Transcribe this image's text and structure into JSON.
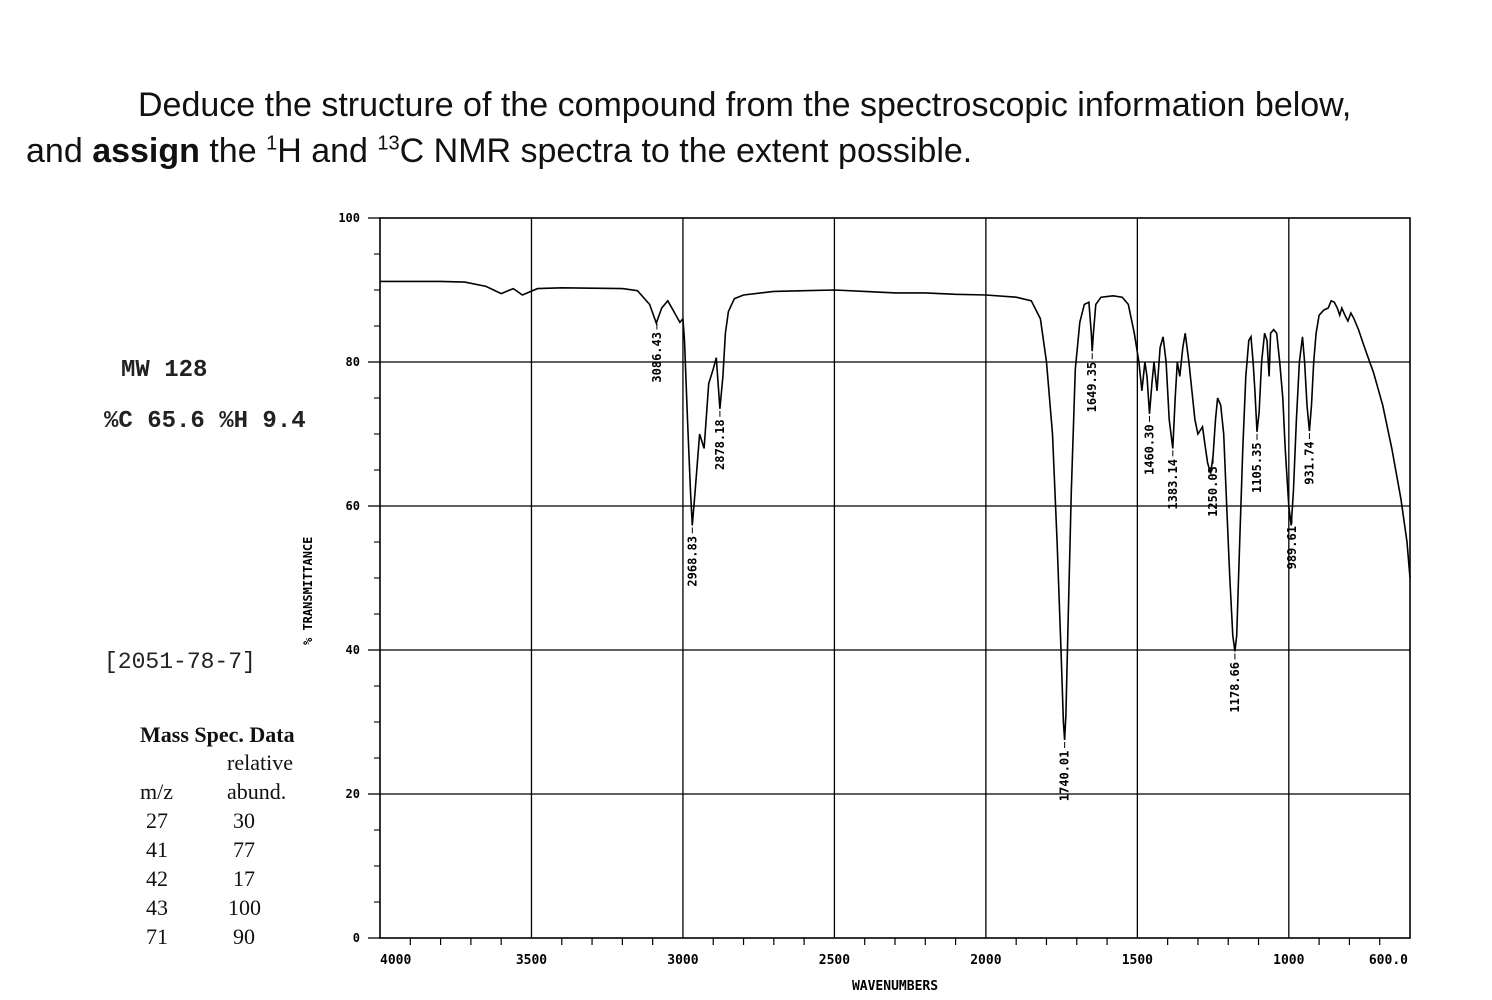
{
  "prompt": {
    "line1": "Deduce the structure of the compound from the spectroscopic information below,",
    "line2_before": "and ",
    "line2_bold": "assign",
    "line2_mid": " the ",
    "sup1": "1",
    "line2_h": "H and ",
    "sup13": "13",
    "line2_after": "C NMR spectra to the extent possible."
  },
  "compound": {
    "mw": "MW 128",
    "composition": "%C 65.6 %H 9.4",
    "cas": "[2051-78-7]"
  },
  "mass_spec": {
    "title": "Mass Spec. Data",
    "header_relative": "relative",
    "header_mz": "m/z",
    "header_abund": "abund.",
    "rows": [
      {
        "mz": "27",
        "abund": "30"
      },
      {
        "mz": "41",
        "abund": "77"
      },
      {
        "mz": "42",
        "abund": "17"
      },
      {
        "mz": "43",
        "abund": "100"
      },
      {
        "mz": "71",
        "abund": "90"
      }
    ]
  },
  "chart_data": {
    "type": "line",
    "xlabel": "WAVENUMBERS",
    "ylabel": "% TRANSMITTANCE",
    "xlim": [
      4000,
      600
    ],
    "ylim": [
      0,
      100
    ],
    "x_ticks": [
      "4000",
      "3500",
      "3000",
      "2500",
      "2000",
      "1500",
      "1000",
      "600.0"
    ],
    "y_ticks": [
      "0",
      "20",
      "40",
      "60",
      "80",
      "100"
    ],
    "grid": true,
    "color": "#000000",
    "series": [
      {
        "points": [
          [
            4000,
            91.2
          ],
          [
            3800,
            91.2
          ],
          [
            3720,
            91.1
          ],
          [
            3650,
            90.5
          ],
          [
            3600,
            89.5
          ],
          [
            3560,
            90.2
          ],
          [
            3530,
            89.3
          ],
          [
            3480,
            90.2
          ],
          [
            3400,
            90.3
          ],
          [
            3200,
            90.2
          ],
          [
            3150,
            89.9
          ],
          [
            3110,
            88
          ],
          [
            3088,
            85.4
          ],
          [
            3070,
            87.5
          ],
          [
            3050,
            88.5
          ],
          [
            3030,
            87
          ],
          [
            3010,
            85.5
          ],
          [
            3000,
            86
          ],
          [
            2995,
            83
          ],
          [
            2985,
            72
          ],
          [
            2975,
            62
          ],
          [
            2969,
            57.3
          ],
          [
            2960,
            62
          ],
          [
            2945,
            70
          ],
          [
            2930,
            68
          ],
          [
            2915,
            77
          ],
          [
            2900,
            79
          ],
          [
            2890,
            80.6
          ],
          [
            2878,
            73.5
          ],
          [
            2868,
            78
          ],
          [
            2860,
            84
          ],
          [
            2850,
            87
          ],
          [
            2830,
            88.8
          ],
          [
            2800,
            89.3
          ],
          [
            2700,
            89.8
          ],
          [
            2600,
            89.9
          ],
          [
            2500,
            90.0
          ],
          [
            2400,
            89.8
          ],
          [
            2300,
            89.6
          ],
          [
            2200,
            89.6
          ],
          [
            2100,
            89.4
          ],
          [
            2000,
            89.3
          ],
          [
            1900,
            89.0
          ],
          [
            1850,
            88.5
          ],
          [
            1820,
            86
          ],
          [
            1800,
            80
          ],
          [
            1780,
            70
          ],
          [
            1765,
            55
          ],
          [
            1752,
            40
          ],
          [
            1744,
            30
          ],
          [
            1740,
            27.5
          ],
          [
            1736,
            31
          ],
          [
            1728,
            45
          ],
          [
            1718,
            62
          ],
          [
            1705,
            79
          ],
          [
            1690,
            85.5
          ],
          [
            1675,
            88
          ],
          [
            1660,
            88.3
          ],
          [
            1652,
            84
          ],
          [
            1649,
            81.5
          ],
          [
            1645,
            84
          ],
          [
            1637,
            88
          ],
          [
            1620,
            89
          ],
          [
            1580,
            89.2
          ],
          [
            1550,
            89
          ],
          [
            1530,
            88
          ],
          [
            1510,
            84
          ],
          [
            1495,
            80
          ],
          [
            1485,
            76
          ],
          [
            1475,
            80
          ],
          [
            1468,
            78
          ],
          [
            1460,
            72.8
          ],
          [
            1452,
            77
          ],
          [
            1445,
            80
          ],
          [
            1435,
            76
          ],
          [
            1425,
            82
          ],
          [
            1415,
            83.5
          ],
          [
            1405,
            80
          ],
          [
            1395,
            72
          ],
          [
            1383,
            68
          ],
          [
            1375,
            75
          ],
          [
            1368,
            80
          ],
          [
            1360,
            78
          ],
          [
            1350,
            82
          ],
          [
            1342,
            84
          ],
          [
            1330,
            80
          ],
          [
            1320,
            76
          ],
          [
            1310,
            72
          ],
          [
            1300,
            70
          ],
          [
            1285,
            71
          ],
          [
            1275,
            68
          ],
          [
            1268,
            66
          ],
          [
            1258,
            64.5
          ],
          [
            1250,
            67
          ],
          [
            1242,
            72
          ],
          [
            1235,
            75
          ],
          [
            1225,
            74
          ],
          [
            1215,
            70
          ],
          [
            1205,
            60
          ],
          [
            1195,
            50
          ],
          [
            1185,
            42
          ],
          [
            1178,
            39.8
          ],
          [
            1172,
            42
          ],
          [
            1162,
            55
          ],
          [
            1152,
            68
          ],
          [
            1142,
            78
          ],
          [
            1132,
            83
          ],
          [
            1125,
            83.5
          ],
          [
            1118,
            80
          ],
          [
            1112,
            76
          ],
          [
            1105,
            70.3
          ],
          [
            1098,
            73
          ],
          [
            1090,
            80
          ],
          [
            1080,
            84
          ],
          [
            1072,
            83
          ],
          [
            1065,
            78
          ],
          [
            1060,
            84
          ],
          [
            1050,
            84.5
          ],
          [
            1040,
            84
          ],
          [
            1030,
            80
          ],
          [
            1020,
            75
          ],
          [
            1012,
            68
          ],
          [
            1006,
            64
          ],
          [
            1000,
            60
          ],
          [
            992,
            57.3
          ],
          [
            985,
            62
          ],
          [
            975,
            72
          ],
          [
            965,
            80
          ],
          [
            955,
            83.5
          ],
          [
            948,
            80
          ],
          [
            940,
            74
          ],
          [
            932,
            70.4
          ],
          [
            925,
            74
          ],
          [
            918,
            80
          ],
          [
            910,
            84
          ],
          [
            900,
            86.5
          ],
          [
            885,
            87.2
          ],
          [
            870,
            87.5
          ],
          [
            860,
            88.5
          ],
          [
            850,
            88.3
          ],
          [
            840,
            87.5
          ],
          [
            832,
            86.5
          ],
          [
            825,
            87.5
          ],
          [
            815,
            86.5
          ],
          [
            805,
            85.7
          ],
          [
            795,
            86.8
          ],
          [
            785,
            86
          ],
          [
            770,
            84.5
          ],
          [
            750,
            82
          ],
          [
            720,
            78.5
          ],
          [
            690,
            74
          ],
          [
            660,
            68
          ],
          [
            630,
            61
          ],
          [
            610,
            55
          ],
          [
            600,
            50
          ]
        ]
      }
    ],
    "annotations": [
      {
        "label": "3086.43",
        "x": 3086
      },
      {
        "label": "2968.83",
        "x": 2969
      },
      {
        "label": "2878.18",
        "x": 2878
      },
      {
        "label": "1740.01",
        "x": 1740
      },
      {
        "label": "1649.35",
        "x": 1649
      },
      {
        "label": "1460.30",
        "x": 1460
      },
      {
        "label": "1383.14",
        "x": 1383
      },
      {
        "label": "1250.03",
        "x": 1250
      },
      {
        "label": "1178.66",
        "x": 1178
      },
      {
        "label": "1105.35",
        "x": 1105
      },
      {
        "label": "989.61",
        "x": 990
      },
      {
        "label": "931.74",
        "x": 932
      }
    ]
  }
}
